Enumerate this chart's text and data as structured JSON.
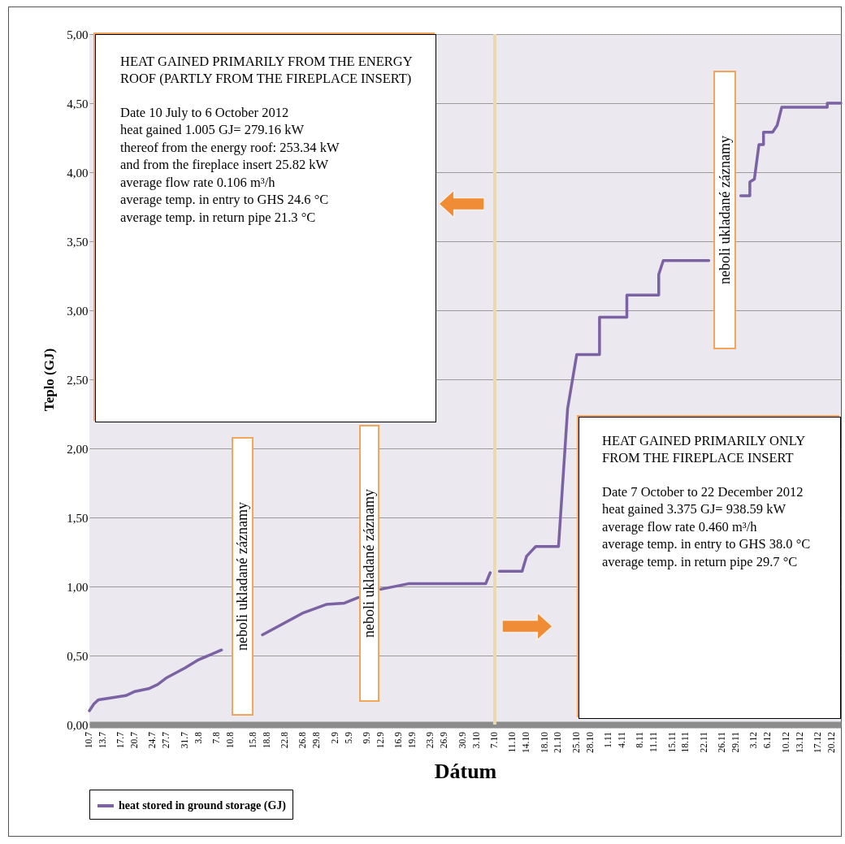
{
  "chart_data": {
    "type": "line",
    "xlabel": "Dátum",
    "ylabel": "Teplo (GJ)",
    "xlim": [
      "2012-07-10",
      "2012-12-22"
    ],
    "ylim": [
      0,
      5
    ],
    "xticks": [
      {
        "value": "2012-07-10",
        "label": "10.7"
      },
      {
        "value": "2012-07-13",
        "label": "13.7"
      },
      {
        "value": "2012-07-17",
        "label": "17.7"
      },
      {
        "value": "2012-07-20",
        "label": "20.7"
      },
      {
        "value": "2012-07-24",
        "label": "24.7"
      },
      {
        "value": "2012-07-27",
        "label": "27.7"
      },
      {
        "value": "2012-07-31",
        "label": "31.7"
      },
      {
        "value": "2012-08-03",
        "label": "3.8"
      },
      {
        "value": "2012-08-07",
        "label": "7.8"
      },
      {
        "value": "2012-08-10",
        "label": "10.8"
      },
      {
        "value": "2012-08-15",
        "label": "15.8"
      },
      {
        "value": "2012-08-18",
        "label": "18.8"
      },
      {
        "value": "2012-08-22",
        "label": "22.8"
      },
      {
        "value": "2012-08-26",
        "label": "26.8"
      },
      {
        "value": "2012-08-29",
        "label": "29.8"
      },
      {
        "value": "2012-09-02",
        "label": "2.9"
      },
      {
        "value": "2012-09-05",
        "label": "5.9"
      },
      {
        "value": "2012-09-09",
        "label": "9.9"
      },
      {
        "value": "2012-09-12",
        "label": "12.9"
      },
      {
        "value": "2012-09-16",
        "label": "16.9"
      },
      {
        "value": "2012-09-19",
        "label": "19.9"
      },
      {
        "value": "2012-09-23",
        "label": "23.9"
      },
      {
        "value": "2012-09-26",
        "label": "26.9"
      },
      {
        "value": "2012-09-30",
        "label": "30.9"
      },
      {
        "value": "2012-10-03",
        "label": "3.10"
      },
      {
        "value": "2012-10-07",
        "label": "7.10"
      },
      {
        "value": "2012-10-11",
        "label": "11.10"
      },
      {
        "value": "2012-10-14",
        "label": "14.10"
      },
      {
        "value": "2012-10-18",
        "label": "18.10"
      },
      {
        "value": "2012-10-21",
        "label": "21.10"
      },
      {
        "value": "2012-10-25",
        "label": "25.10"
      },
      {
        "value": "2012-10-28",
        "label": "28.10"
      },
      {
        "value": "2012-11-01",
        "label": "1.11"
      },
      {
        "value": "2012-11-04",
        "label": "4.11"
      },
      {
        "value": "2012-11-08",
        "label": "8.11"
      },
      {
        "value": "2012-11-11",
        "label": "11.11"
      },
      {
        "value": "2012-11-15",
        "label": "15.11"
      },
      {
        "value": "2012-11-18",
        "label": "18.11"
      },
      {
        "value": "2012-11-22",
        "label": "22.11"
      },
      {
        "value": "2012-11-26",
        "label": "26.11"
      },
      {
        "value": "2012-11-29",
        "label": "29.11"
      },
      {
        "value": "2012-12-03",
        "label": "3.12"
      },
      {
        "value": "2012-12-06",
        "label": "6.12"
      },
      {
        "value": "2012-12-10",
        "label": "10.12"
      },
      {
        "value": "2012-12-13",
        "label": "13.12"
      },
      {
        "value": "2012-12-17",
        "label": "17.12"
      },
      {
        "value": "2012-12-20",
        "label": "20.12"
      }
    ],
    "yticks": [
      {
        "value": 0,
        "label": "0,00"
      },
      {
        "value": 0.5,
        "label": "0,50"
      },
      {
        "value": 1,
        "label": "1,00"
      },
      {
        "value": 1.5,
        "label": "1,50"
      },
      {
        "value": 2,
        "label": "2,00"
      },
      {
        "value": 2.5,
        "label": "2,50"
      },
      {
        "value": 3,
        "label": "3,00"
      },
      {
        "value": 3.5,
        "label": "3,50"
      },
      {
        "value": 4,
        "label": "4,00"
      },
      {
        "value": 4.5,
        "label": "4,50"
      },
      {
        "value": 5,
        "label": "5,00"
      }
    ],
    "grid": "y",
    "legend": "bottom",
    "series": [
      {
        "name": "heat stored in ground storage (GJ)",
        "color": "#7b62a3",
        "x": [
          "2012-07-10",
          "2012-07-11",
          "2012-07-12",
          "2012-07-18",
          "2012-07-20",
          "2012-07-23",
          "2012-07-25",
          "2012-07-27",
          "2012-07-31",
          "2012-08-03",
          "2012-08-08",
          "2012-08-12",
          "2012-08-17",
          "2012-08-26",
          "2012-08-31",
          "2012-09-04",
          "2012-09-07",
          "2012-09-10",
          "2012-09-12",
          "2012-09-18",
          "2012-10-05",
          "2012-10-06",
          "2012-10-07",
          "2012-10-08",
          "2012-10-13",
          "2012-10-14",
          "2012-10-16",
          "2012-10-21",
          "2012-10-23",
          "2012-10-25",
          "2012-10-30",
          "2012-10-30",
          "2012-11-05",
          "2012-11-05",
          "2012-11-12",
          "2012-11-12",
          "2012-11-13",
          "2012-11-23",
          "2012-11-26",
          "2012-11-30",
          "2012-12-02",
          "2012-12-02",
          "2012-12-03",
          "2012-12-04",
          "2012-12-05",
          "2012-12-05",
          "2012-12-07",
          "2012-12-08",
          "2012-12-09",
          "2012-12-19",
          "2012-12-19",
          "2012-12-22"
        ],
        "values": [
          0.1,
          0.15,
          0.18,
          0.21,
          0.24,
          0.26,
          0.29,
          0.34,
          0.41,
          0.47,
          0.54,
          null,
          0.65,
          0.81,
          0.87,
          0.88,
          0.92,
          null,
          0.98,
          1.02,
          1.02,
          1.1,
          null,
          1.11,
          1.11,
          1.22,
          1.29,
          1.29,
          2.29,
          2.68,
          2.68,
          2.95,
          2.95,
          3.11,
          3.11,
          3.26,
          3.36,
          3.36,
          null,
          3.83,
          3.83,
          3.93,
          3.95,
          4.2,
          4.2,
          4.29,
          4.29,
          4.34,
          4.47,
          4.47,
          4.5,
          4.5
        ]
      }
    ],
    "ref_lines": [
      {
        "axis": "x",
        "value": "2012-10-07",
        "color": "#ecd9ad"
      }
    ],
    "annotations": [
      "HEAT GAINED PRIMARILY FROM THE ENERGY ROOF (PARTLY FROM THE FIREPLACE INSERT)",
      "Date 10 July to 6 October 2012",
      "heat gained 1.005 GJ= 279.16 kW",
      "thereof from the energy roof: 253.34 kW",
      "and from the fireplace insert 25.82 kW",
      "average flow rate 0.106 m³/h",
      "average temp. in entry to GHS 24.6 °C",
      "average temp. in return pipe 21.3 °C",
      "HEAT GAINED PRIMARILY ONLY FROM THE FIREPLACE INSERT",
      "Date 7 October to 22 December 2012",
      "heat gained 3.375 GJ= 938.59 kW",
      "average flow rate 0.460 m³/h",
      "average temp. in entry to GHS 38.0 °C",
      "average temp. in return pipe 29.7 °C",
      "neboli ukladané záznamy",
      "neboli ukladané záznamy",
      "neboli ukladané záznamy"
    ]
  }
}
